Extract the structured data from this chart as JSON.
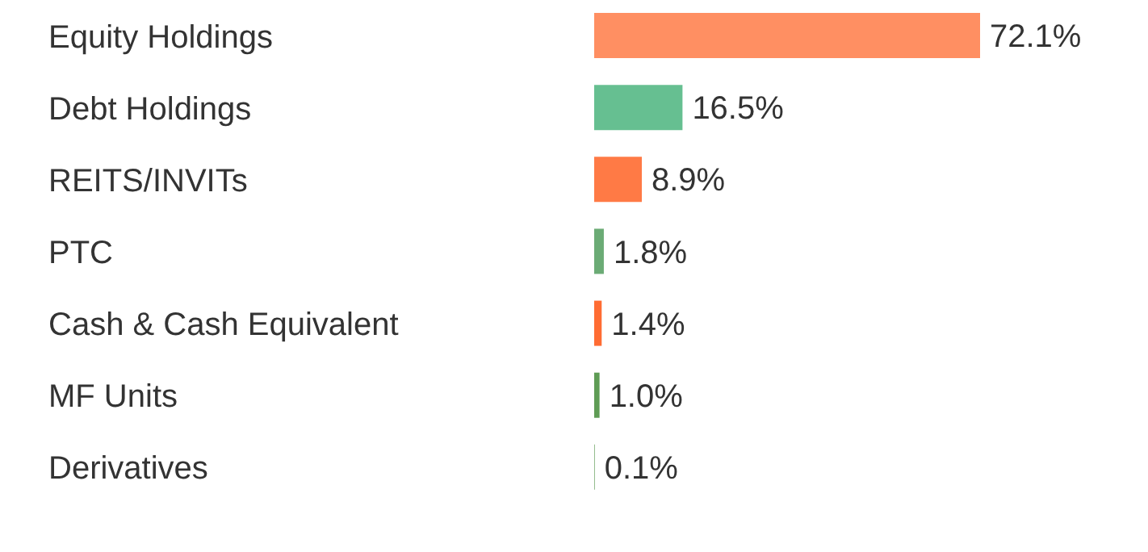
{
  "chart_data": {
    "type": "bar",
    "orientation": "horizontal",
    "categories": [
      "Equity Holdings",
      "Debt Holdings",
      "REITS/INVITs",
      "PTC",
      "Cash & Cash Equivalent",
      "MF Units",
      "Derivatives"
    ],
    "values": [
      72.1,
      16.5,
      8.9,
      1.8,
      1.4,
      1.0,
      0.1
    ],
    "colors": [
      "#ff8f62",
      "#66bf91",
      "#ff7a45",
      "#6bab75",
      "#ff6c33",
      "#5f9c55",
      "#5f9c55"
    ],
    "value_labels": [
      "72.1%",
      "16.5%",
      "8.9%",
      "1.8%",
      "1.4%",
      "1.0%",
      "0.1%"
    ],
    "tick_labels": "y"
  }
}
